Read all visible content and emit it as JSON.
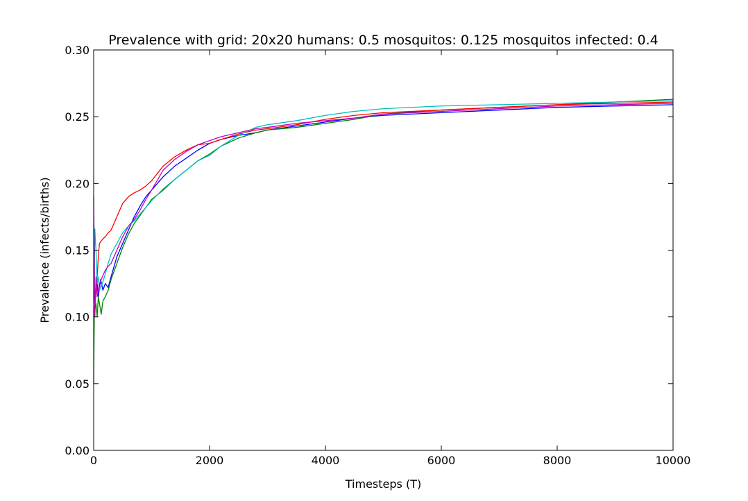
{
  "chart_data": {
    "type": "line",
    "title": "Prevalence with grid: 20x20 humans: 0.5 mosquitos: 0.125 mosquitos infected: 0.4",
    "xlabel": "Timesteps (T)",
    "ylabel": "Prevalence (infects/births)",
    "xlim": [
      0,
      10000
    ],
    "ylim": [
      0.0,
      0.3
    ],
    "xticks": [
      0,
      2000,
      4000,
      6000,
      8000,
      10000
    ],
    "xtick_labels": [
      "0",
      "2000",
      "4000",
      "6000",
      "8000",
      "10000"
    ],
    "yticks": [
      0.0,
      0.05,
      0.1,
      0.15,
      0.2,
      0.25,
      0.3
    ],
    "ytick_labels": [
      "0.00",
      "0.05",
      "0.10",
      "0.15",
      "0.20",
      "0.25",
      "0.30"
    ],
    "grid": false,
    "legend": "none",
    "series": [
      {
        "color": "#0000ff",
        "x": [
          0,
          20,
          50,
          80,
          120,
          160,
          200,
          250,
          300,
          400,
          500,
          600,
          700,
          800,
          900,
          1000,
          1200,
          1400,
          1600,
          1800,
          2000,
          2200,
          2500,
          2800,
          3000,
          3500,
          4000,
          4500,
          5000,
          6000,
          7000,
          8000,
          9000,
          10000
        ],
        "y": [
          0.12,
          0.11,
          0.13,
          0.115,
          0.128,
          0.12,
          0.125,
          0.122,
          0.13,
          0.145,
          0.155,
          0.165,
          0.175,
          0.183,
          0.19,
          0.195,
          0.205,
          0.213,
          0.219,
          0.225,
          0.23,
          0.233,
          0.236,
          0.238,
          0.24,
          0.243,
          0.246,
          0.249,
          0.251,
          0.253,
          0.255,
          0.257,
          0.258,
          0.259
        ]
      },
      {
        "color": "#008000",
        "x": [
          0,
          10,
          20,
          40,
          60,
          80,
          100,
          130,
          160,
          200,
          250,
          300,
          400,
          500,
          600,
          700,
          800,
          900,
          1000,
          1200,
          1400,
          1600,
          1800,
          2000,
          2200,
          2500,
          2800,
          3000,
          3500,
          4000,
          4500,
          5000,
          6000,
          7000,
          8000,
          9000,
          10000
        ],
        "y": [
          0.05,
          0.1,
          0.105,
          0.11,
          0.1,
          0.115,
          0.11,
          0.102,
          0.112,
          0.115,
          0.12,
          0.128,
          0.14,
          0.152,
          0.162,
          0.17,
          0.176,
          0.182,
          0.188,
          0.195,
          0.203,
          0.21,
          0.217,
          0.222,
          0.228,
          0.234,
          0.238,
          0.24,
          0.242,
          0.245,
          0.248,
          0.252,
          0.255,
          0.257,
          0.259,
          0.261,
          0.263
        ]
      },
      {
        "color": "#ff0000",
        "x": [
          0,
          20,
          40,
          60,
          80,
          100,
          150,
          200,
          250,
          300,
          400,
          500,
          600,
          700,
          800,
          900,
          1000,
          1200,
          1400,
          1600,
          1800,
          2000,
          2200,
          2500,
          2800,
          3000,
          3500,
          4000,
          4500,
          5000,
          6000,
          7000,
          8000,
          9000,
          10000
        ],
        "y": [
          0.1,
          0.11,
          0.12,
          0.13,
          0.145,
          0.155,
          0.158,
          0.16,
          0.163,
          0.165,
          0.175,
          0.185,
          0.19,
          0.193,
          0.195,
          0.198,
          0.202,
          0.213,
          0.22,
          0.225,
          0.229,
          0.23,
          0.233,
          0.237,
          0.24,
          0.241,
          0.244,
          0.248,
          0.251,
          0.253,
          0.255,
          0.257,
          0.259,
          0.26,
          0.261
        ]
      },
      {
        "color": "#00bfbf",
        "x": [
          0,
          10,
          20,
          40,
          60,
          80,
          100,
          150,
          200,
          250,
          300,
          400,
          500,
          600,
          700,
          800,
          900,
          1000,
          1200,
          1400,
          1600,
          1800,
          2000,
          2200,
          2500,
          2800,
          3000,
          3500,
          4000,
          4500,
          5000,
          6000,
          7000,
          8000,
          9000,
          10000
        ],
        "y": [
          0.14,
          0.12,
          0.166,
          0.15,
          0.125,
          0.13,
          0.12,
          0.125,
          0.132,
          0.14,
          0.147,
          0.155,
          0.163,
          0.168,
          0.172,
          0.177,
          0.182,
          0.187,
          0.196,
          0.203,
          0.21,
          0.217,
          0.221,
          0.228,
          0.236,
          0.242,
          0.244,
          0.247,
          0.251,
          0.254,
          0.256,
          0.258,
          0.259,
          0.26,
          0.261,
          0.262
        ]
      },
      {
        "color": "#bf00bf",
        "x": [
          0,
          20,
          40,
          60,
          80,
          100,
          150,
          200,
          250,
          300,
          400,
          500,
          600,
          700,
          800,
          900,
          1000,
          1200,
          1400,
          1600,
          1800,
          2000,
          2200,
          2500,
          2800,
          3000,
          3500,
          4000,
          4500,
          5000,
          6000,
          7000,
          8000,
          9000,
          10000
        ],
        "y": [
          0.19,
          0.1,
          0.13,
          0.115,
          0.12,
          0.125,
          0.13,
          0.135,
          0.138,
          0.14,
          0.15,
          0.16,
          0.168,
          0.173,
          0.18,
          0.188,
          0.195,
          0.21,
          0.218,
          0.224,
          0.229,
          0.232,
          0.235,
          0.238,
          0.241,
          0.242,
          0.245,
          0.247,
          0.249,
          0.252,
          0.254,
          0.256,
          0.258,
          0.259,
          0.26
        ]
      }
    ]
  }
}
